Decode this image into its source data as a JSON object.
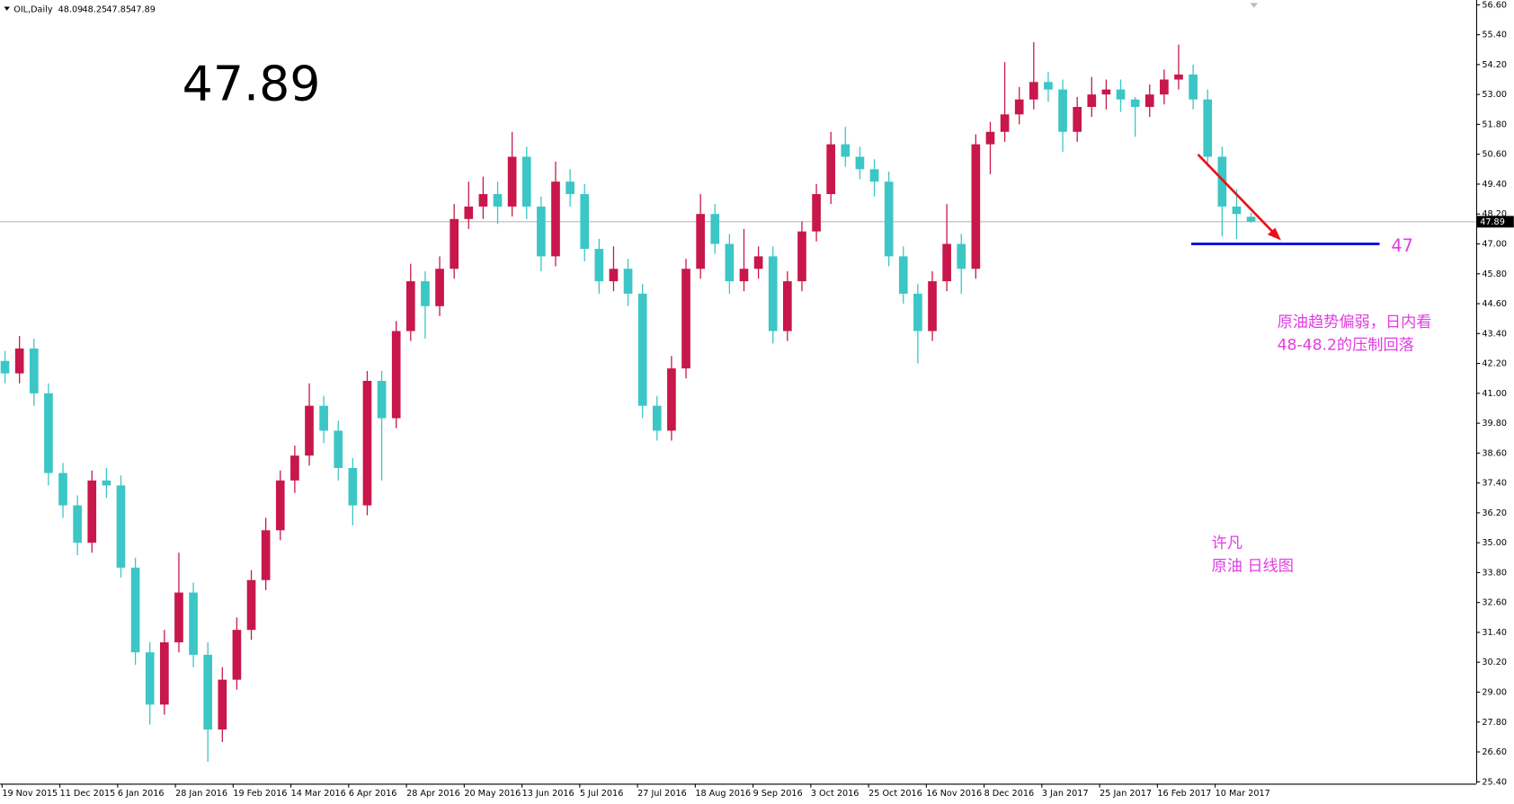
{
  "chart_data": {
    "type": "candlestick",
    "header": {
      "symbol": "OIL,Daily",
      "values": [
        48.09,
        48.25,
        47.85,
        47.89
      ]
    },
    "price_display": "47.89",
    "last_price": 47.89,
    "support": 47,
    "annotation_lines": [
      "原油趋势偏弱，日内看",
      "48-48.2的压制回落"
    ],
    "author_lines": [
      "许凡",
      "原油 日线图"
    ],
    "up_color": "#c8174b",
    "down_color": "#3cc6c6",
    "ylim": [
      25.4,
      56.6
    ],
    "yticks": [
      {
        "value": 25.4,
        "label": "25.40"
      },
      {
        "value": 26.6,
        "label": "26.60"
      },
      {
        "value": 27.8,
        "label": "27.80"
      },
      {
        "value": 29,
        "label": "29.00"
      },
      {
        "value": 30.2,
        "label": "30.20"
      },
      {
        "value": 31.4,
        "label": "31.40"
      },
      {
        "value": 32.6,
        "label": "32.60"
      },
      {
        "value": 33.8,
        "label": "33.80"
      },
      {
        "value": 35,
        "label": "35.00"
      },
      {
        "value": 36.2,
        "label": "36.20"
      },
      {
        "value": 37.4,
        "label": "37.40"
      },
      {
        "value": 38.6,
        "label": "38.60"
      },
      {
        "value": 39.8,
        "label": "39.80"
      },
      {
        "value": 41,
        "label": "41.00"
      },
      {
        "value": 42.2,
        "label": "42.20"
      },
      {
        "value": 43.4,
        "label": "43.40"
      },
      {
        "value": 44.6,
        "label": "44.60"
      },
      {
        "value": 45.8,
        "label": "45.80"
      },
      {
        "value": 47,
        "label": "47.00"
      },
      {
        "value": 48.2,
        "label": "48.20"
      },
      {
        "value": 49.4,
        "label": "49.40"
      },
      {
        "value": 50.6,
        "label": "50.60"
      },
      {
        "value": 51.8,
        "label": "51.80"
      },
      {
        "value": 53,
        "label": "53.00"
      },
      {
        "value": 54.2,
        "label": "54.20"
      },
      {
        "value": 55.4,
        "label": "55.40"
      },
      {
        "value": 56.6,
        "label": "56.60"
      }
    ],
    "x_labels": [
      "19 Nov 2015",
      "11 Dec 2015",
      "6 Jan 2016",
      "28 Jan 2016",
      "19 Feb 2016",
      "14 Mar 2016",
      "6 Apr 2016",
      "28 Apr 2016",
      "20 May 2016",
      "13 Jun 2016",
      "5 Jul 2016",
      "27 Jul 2016",
      "18 Aug 2016",
      "9 Sep 2016",
      "3 Oct 2016",
      "25 Oct 2016",
      "16 Nov 2016",
      "8 Dec 2016",
      "3 Jan 2017",
      "25 Jan 2017",
      "16 Feb 2017",
      "10 Mar 2017"
    ],
    "ohlc": [
      [
        42.3,
        42.7,
        41.4,
        41.8
      ],
      [
        41.8,
        43.3,
        41.4,
        42.8
      ],
      [
        42.8,
        43.2,
        40.5,
        41
      ],
      [
        41,
        41.4,
        37.3,
        37.8
      ],
      [
        37.8,
        38.2,
        36,
        36.5
      ],
      [
        36.5,
        36.9,
        34.5,
        35
      ],
      [
        35,
        37.9,
        34.6,
        37.5
      ],
      [
        37.5,
        38,
        36.8,
        37.3
      ],
      [
        37.3,
        37.7,
        33.6,
        34
      ],
      [
        34,
        34.4,
        30.1,
        30.6
      ],
      [
        30.6,
        31,
        27.7,
        28.5
      ],
      [
        28.5,
        31.5,
        28.1,
        31
      ],
      [
        31,
        34.6,
        30.6,
        33
      ],
      [
        33,
        33.4,
        30,
        30.5
      ],
      [
        30.5,
        31,
        26.2,
        27.5
      ],
      [
        27.5,
        30,
        27,
        29.5
      ],
      [
        29.5,
        32,
        29.1,
        31.5
      ],
      [
        31.5,
        33.9,
        31.1,
        33.5
      ],
      [
        33.5,
        36,
        33.1,
        35.5
      ],
      [
        35.5,
        37.9,
        35.1,
        37.5
      ],
      [
        37.5,
        38.9,
        37,
        38.5
      ],
      [
        38.5,
        41.4,
        38.1,
        40.5
      ],
      [
        40.5,
        40.9,
        39,
        39.5
      ],
      [
        39.5,
        39.9,
        37.5,
        38
      ],
      [
        38,
        38.4,
        35.7,
        36.5
      ],
      [
        36.5,
        41.9,
        36.1,
        41.5
      ],
      [
        41.5,
        41.9,
        37.5,
        40
      ],
      [
        40,
        43.9,
        39.6,
        43.5
      ],
      [
        43.5,
        46.2,
        43.1,
        45.5
      ],
      [
        45.5,
        45.9,
        43.2,
        44.5
      ],
      [
        44.5,
        46.5,
        44.1,
        46
      ],
      [
        46,
        48.6,
        45.6,
        48
      ],
      [
        48,
        49.5,
        47.6,
        48.5
      ],
      [
        48.5,
        49.7,
        48,
        49
      ],
      [
        49,
        49.5,
        47.8,
        48.5
      ],
      [
        48.5,
        51.5,
        48.1,
        50.5
      ],
      [
        50.5,
        50.9,
        48,
        48.5
      ],
      [
        48.5,
        48.9,
        45.9,
        46.5
      ],
      [
        46.5,
        50.3,
        46.1,
        49.5
      ],
      [
        49.5,
        50,
        48.5,
        49
      ],
      [
        49,
        49.4,
        46.3,
        46.8
      ],
      [
        46.8,
        47.2,
        45,
        45.5
      ],
      [
        45.5,
        46.9,
        45.1,
        46
      ],
      [
        46,
        46.4,
        44.5,
        45
      ],
      [
        45,
        45.4,
        40,
        40.5
      ],
      [
        40.5,
        40.9,
        39.1,
        39.5
      ],
      [
        39.5,
        42.5,
        39.1,
        42
      ],
      [
        42,
        46.4,
        41.6,
        46
      ],
      [
        46,
        49,
        45.6,
        48.2
      ],
      [
        48.2,
        48.6,
        46.6,
        47
      ],
      [
        47,
        47.4,
        45,
        45.5
      ],
      [
        45.5,
        47.6,
        45.1,
        46
      ],
      [
        46,
        46.9,
        45.6,
        46.5
      ],
      [
        46.5,
        46.9,
        43,
        43.5
      ],
      [
        43.5,
        45.9,
        43.1,
        45.5
      ],
      [
        45.5,
        47.9,
        45.1,
        47.5
      ],
      [
        47.5,
        49.4,
        47.1,
        49
      ],
      [
        49,
        51.5,
        48.6,
        51
      ],
      [
        51,
        51.7,
        50.1,
        50.5
      ],
      [
        50.5,
        50.9,
        49.6,
        50
      ],
      [
        50,
        50.4,
        48.9,
        49.5
      ],
      [
        49.5,
        49.9,
        46.1,
        46.5
      ],
      [
        46.5,
        46.9,
        44.6,
        45
      ],
      [
        45,
        45.4,
        42.2,
        43.5
      ],
      [
        43.5,
        45.9,
        43.1,
        45.5
      ],
      [
        45.5,
        48.6,
        45.1,
        47
      ],
      [
        47,
        47.4,
        45,
        46
      ],
      [
        46,
        51.4,
        45.6,
        51
      ],
      [
        51,
        51.9,
        49.8,
        51.5
      ],
      [
        51.5,
        54.3,
        51.1,
        52.2
      ],
      [
        52.2,
        53.3,
        51.8,
        52.8
      ],
      [
        52.8,
        55.1,
        52.4,
        53.5
      ],
      [
        53.5,
        53.9,
        52.7,
        53.2
      ],
      [
        53.2,
        53.6,
        50.7,
        51.5
      ],
      [
        51.5,
        52.9,
        51.1,
        52.5
      ],
      [
        52.5,
        53.7,
        52.1,
        53
      ],
      [
        53,
        53.6,
        52.4,
        53.2
      ],
      [
        53.2,
        53.6,
        52.3,
        52.8
      ],
      [
        52.8,
        52.9,
        51.3,
        52.5
      ],
      [
        52.5,
        53.4,
        52.1,
        53
      ],
      [
        53,
        54,
        52.6,
        53.6
      ],
      [
        53.6,
        55,
        53.2,
        53.8
      ],
      [
        53.8,
        54.2,
        52.4,
        52.8
      ],
      [
        52.8,
        53.2,
        50.1,
        50.5
      ],
      [
        50.5,
        50.9,
        47.3,
        48.5
      ],
      [
        48.5,
        49.2,
        47.2,
        48.2
      ],
      [
        48.09,
        48.25,
        47.85,
        47.89
      ]
    ]
  }
}
